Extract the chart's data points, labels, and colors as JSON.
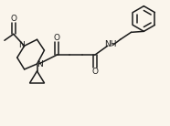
{
  "background_color": "#faf5ec",
  "line_color": "#1a1a1a",
  "line_width": 1.1,
  "figsize": [
    1.86,
    1.38
  ],
  "dpi": 100,
  "xlim": [
    0,
    186
  ],
  "ylim": [
    0,
    138
  ]
}
